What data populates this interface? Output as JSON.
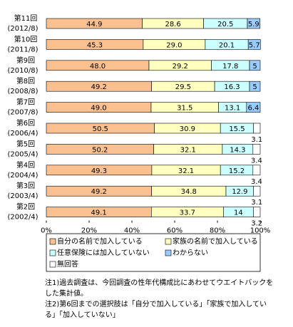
{
  "chart_data": {
    "type": "stacked-barh",
    "categories": [
      [
        "第11回",
        "(2012/8)"
      ],
      [
        "第10回",
        "(2011/8)"
      ],
      [
        "第9回",
        "(2010/8)"
      ],
      [
        "第8回",
        "(2008/8)"
      ],
      [
        "第7回",
        "(2007/8)"
      ],
      [
        "第6回",
        "(2006/4)"
      ],
      [
        "第5回",
        "(2005/4)"
      ],
      [
        "第4回",
        "(2004/4)"
      ],
      [
        "第3回",
        "(2003/4)"
      ],
      [
        "第2回",
        "(2002/4)"
      ]
    ],
    "series": [
      {
        "name": "自分の名前で加入している",
        "color": "#fac090",
        "values": [
          44.9,
          45.3,
          48.0,
          49.2,
          49.0,
          50.5,
          50.2,
          49.3,
          49.2,
          49.1
        ],
        "value_labels": [
          "44.9",
          "45.3",
          "48.0",
          "49.2",
          "49.0",
          "50.5",
          "50.2",
          "49.3",
          "49.2",
          "49.1"
        ]
      },
      {
        "name": "家族の名前で加入している",
        "color": "#ffffc0",
        "values": [
          28.6,
          29.0,
          29.2,
          29.5,
          31.5,
          30.9,
          32.1,
          32.1,
          34.8,
          33.7
        ],
        "value_labels": [
          "28.6",
          "29.0",
          "29.2",
          "29.5",
          "31.5",
          "30.9",
          "32.1",
          "32.1",
          "34.8",
          "33.7"
        ]
      },
      {
        "name": "任意保険には加入していない",
        "color": "#ccffff",
        "values": [
          20.5,
          20.1,
          17.8,
          16.3,
          13.1,
          15.5,
          14.3,
          15.2,
          12.9,
          14.0
        ]
      },
      {
        "name": "わからない",
        "color": "#99ccff",
        "values": [
          5.9,
          5.7,
          5.0,
          5.0,
          6.4,
          null,
          null,
          null,
          null,
          null
        ]
      },
      {
        "name": "無回答",
        "color": "#ffffff",
        "values": [
          null,
          null,
          null,
          null,
          null,
          3.1,
          3.4,
          3.4,
          3.1,
          3.2
        ]
      }
    ],
    "xlim": [
      0,
      100
    ],
    "xticks": [
      {
        "value": 0,
        "label": "0%"
      },
      {
        "value": 20,
        "label": "20%"
      },
      {
        "value": 40,
        "label": "40%"
      },
      {
        "value": 60,
        "label": "60%"
      },
      {
        "value": 80,
        "label": "80%"
      },
      {
        "value": 100,
        "label": "100%"
      }
    ],
    "notes": [
      "注1)過去調査は、今回調査の性年代構成比にあわせてウエイトバックを",
      "した集計値。",
      "注2)第6回までの選択肢は「自分で加入している」「家族で加入してい",
      "る」「加入していない」"
    ]
  }
}
